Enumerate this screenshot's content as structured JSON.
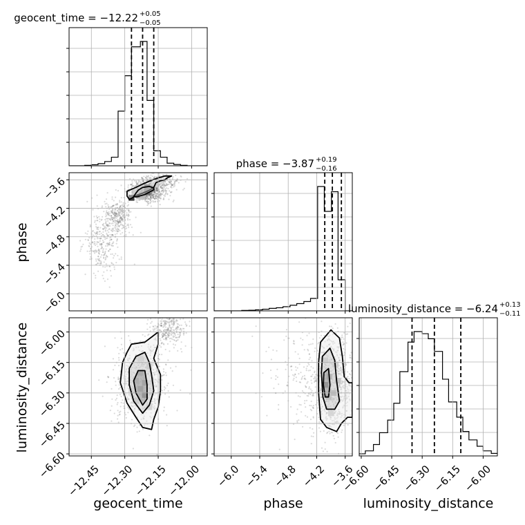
{
  "chart_data": {
    "type": "corner",
    "parameters": [
      {
        "name": "geocent_time",
        "range": [
          -12.55,
          -11.93
        ],
        "ticks": [
          -12.45,
          -12.3,
          -12.15,
          -12.0
        ],
        "tick_labels": [
          "−12.45",
          "−12.30",
          "−12.15",
          "−12.00"
        ],
        "median": -12.22,
        "plus": 0.05,
        "minus": 0.05,
        "title_main": "geocent_time = −12.22",
        "title_plus": "+0.05",
        "title_minus": "−0.05"
      },
      {
        "name": "phase",
        "range": [
          -6.36,
          -3.45
        ],
        "ticks": [
          -6.0,
          -5.4,
          -4.8,
          -4.2,
          -3.6
        ],
        "tick_labels": [
          "−6.0",
          "−5.4",
          "−4.8",
          "−4.2",
          "−3.6"
        ],
        "median": -3.87,
        "plus": 0.19,
        "minus": 0.16,
        "title_main": "phase = −3.87",
        "title_plus": "+0.19",
        "title_minus": "−0.16"
      },
      {
        "name": "luminosity_distance",
        "range": [
          -6.61,
          -5.93
        ],
        "ticks": [
          -6.6,
          -6.45,
          -6.3,
          -6.15,
          -6.0
        ],
        "tick_labels": [
          "−6.60",
          "−6.45",
          "−6.30",
          "−6.15",
          "−6.00"
        ],
        "median": -6.24,
        "plus": 0.13,
        "minus": 0.11,
        "title_main": "luminosity_distance = −6.24",
        "title_plus": "+0.13",
        "title_minus": "−0.11"
      }
    ],
    "histograms": [
      {
        "parameter": "geocent_time",
        "bin_edges": [
          -12.55,
          -12.52,
          -12.48,
          -12.45,
          -12.42,
          -12.39,
          -12.36,
          -12.33,
          -12.3,
          -12.27,
          -12.23,
          -12.2,
          -12.17,
          -12.14,
          -12.11,
          -12.08,
          -12.05,
          -12.02,
          -11.99,
          -11.96,
          -11.93
        ],
        "counts": [
          0,
          0,
          2,
          5,
          10,
          20,
          40,
          255,
          420,
          555,
          580,
          305,
          70,
          40,
          12,
          6,
          2,
          0,
          0,
          0
        ],
        "quantile_lines": [
          -12.27,
          -12.22,
          -12.17
        ]
      },
      {
        "parameter": "phase",
        "bin_edges": [
          -6.36,
          -6.21,
          -6.07,
          -5.92,
          -5.78,
          -5.63,
          -5.49,
          -5.34,
          -5.2,
          -5.05,
          -4.91,
          -4.76,
          -4.62,
          -4.47,
          -4.33,
          -4.18,
          -4.04,
          -3.89,
          -3.75,
          -3.6,
          -3.45
        ],
        "counts": [
          0,
          0,
          0,
          0,
          2,
          3,
          5,
          8,
          12,
          15,
          20,
          27,
          35,
          45,
          60,
          600,
          480,
          575,
          150,
          0
        ],
        "quantile_lines": [
          -4.03,
          -3.87,
          -3.68
        ]
      },
      {
        "parameter": "luminosity_distance",
        "bin_edges": [
          -6.61,
          -6.58,
          -6.54,
          -6.51,
          -6.47,
          -6.44,
          -6.41,
          -6.37,
          -6.34,
          -6.3,
          -6.27,
          -6.24,
          -6.2,
          -6.17,
          -6.13,
          -6.1,
          -6.07,
          -6.03,
          -6.0,
          -5.96,
          -5.93
        ],
        "counts": [
          5,
          12,
          27,
          55,
          85,
          125,
          200,
          270,
          295,
          290,
          278,
          248,
          182,
          128,
          92,
          58,
          38,
          23,
          12,
          6
        ],
        "quantile_lines": [
          -6.35,
          -6.24,
          -6.11
        ]
      }
    ],
    "scatter_panels": [
      {
        "x": "geocent_time",
        "y": "phase",
        "point_centers": [
          [
            -12.2,
            -3.85
          ],
          [
            -12.33,
            -4.4
          ],
          [
            -12.4,
            -4.9
          ],
          [
            -12.15,
            -3.65
          ]
        ],
        "point_spreads": [
          [
            0.04,
            0.1
          ],
          [
            0.03,
            0.18
          ],
          [
            0.04,
            0.35
          ],
          [
            0.05,
            0.08
          ]
        ],
        "contours": [
          [
            [
              -12.27,
              -3.99
            ],
            [
              -12.25,
              -3.93
            ],
            [
              -12.22,
              -3.88
            ],
            [
              -12.19,
              -3.82
            ],
            [
              -12.17,
              -3.76
            ],
            [
              -12.16,
              -3.66
            ],
            [
              -12.14,
              -3.62
            ],
            [
              -12.12,
              -3.6
            ],
            [
              -12.11,
              -3.56
            ],
            [
              -12.09,
              -3.52
            ],
            [
              -12.12,
              -3.52
            ],
            [
              -12.15,
              -3.56
            ],
            [
              -12.18,
              -3.61
            ],
            [
              -12.22,
              -3.69
            ],
            [
              -12.25,
              -3.76
            ],
            [
              -12.27,
              -3.8
            ],
            [
              -12.29,
              -3.84
            ],
            [
              -12.29,
              -3.94
            ],
            [
              -12.28,
              -4.01
            ]
          ],
          [
            [
              -12.25,
              -3.96
            ],
            [
              -12.21,
              -3.91
            ],
            [
              -12.19,
              -3.86
            ],
            [
              -12.17,
              -3.81
            ],
            [
              -12.17,
              -3.77
            ],
            [
              -12.19,
              -3.74
            ],
            [
              -12.22,
              -3.76
            ],
            [
              -12.24,
              -3.82
            ],
            [
              -12.25,
              -3.88
            ],
            [
              -12.26,
              -3.95
            ]
          ]
        ],
        "density_cells": [
          {
            "x": -12.27,
            "y": -3.98,
            "level": 0.85
          },
          {
            "x": -12.23,
            "y": -3.92,
            "level": 0.5
          },
          {
            "x": -12.2,
            "y": -3.86,
            "level": 0.6
          },
          {
            "x": -12.18,
            "y": -3.8,
            "level": 0.45
          },
          {
            "x": -12.2,
            "y": -3.76,
            "level": 0.7
          },
          {
            "x": -12.25,
            "y": -3.86,
            "level": 0.3
          },
          {
            "x": -12.16,
            "y": -3.7,
            "level": 0.2
          },
          {
            "x": -12.14,
            "y": -3.64,
            "level": 0.15
          },
          {
            "x": -12.22,
            "y": -3.96,
            "level": 0.25
          }
        ]
      },
      {
        "x": "geocent_time",
        "y": "luminosity_distance",
        "point_centers": [
          [
            -12.23,
            -6.25
          ],
          [
            -12.1,
            -5.98
          ]
        ],
        "point_spreads": [
          [
            0.06,
            0.1
          ],
          [
            0.04,
            0.04
          ]
        ],
        "contours": [
          [
            [
              -12.27,
              -6.06
            ],
            [
              -12.21,
              -6.05
            ],
            [
              -12.15,
              -6.0
            ],
            [
              -12.15,
              -6.06
            ],
            [
              -12.17,
              -6.13
            ],
            [
              -12.14,
              -6.21
            ],
            [
              -12.14,
              -6.29
            ],
            [
              -12.15,
              -6.37
            ],
            [
              -12.17,
              -6.43
            ],
            [
              -12.18,
              -6.48
            ],
            [
              -12.22,
              -6.47
            ],
            [
              -12.25,
              -6.42
            ],
            [
              -12.29,
              -6.35
            ],
            [
              -12.32,
              -6.25
            ],
            [
              -12.31,
              -6.15
            ],
            [
              -12.29,
              -6.1
            ]
          ],
          [
            [
              -12.25,
              -6.12
            ],
            [
              -12.21,
              -6.1
            ],
            [
              -12.19,
              -6.15
            ],
            [
              -12.18,
              -6.21
            ],
            [
              -12.17,
              -6.29
            ],
            [
              -12.19,
              -6.36
            ],
            [
              -12.22,
              -6.4
            ],
            [
              -12.26,
              -6.34
            ],
            [
              -12.28,
              -6.26
            ],
            [
              -12.28,
              -6.18
            ]
          ],
          [
            [
              -12.24,
              -6.19
            ],
            [
              -12.21,
              -6.19
            ],
            [
              -12.2,
              -6.26
            ],
            [
              -12.2,
              -6.33
            ],
            [
              -12.22,
              -6.36
            ],
            [
              -12.25,
              -6.3
            ],
            [
              -12.26,
              -6.24
            ]
          ]
        ],
        "density_cells": [
          {
            "x": -12.23,
            "y": -6.2,
            "level": 0.4
          },
          {
            "x": -12.21,
            "y": -6.25,
            "level": 0.55
          },
          {
            "x": -12.23,
            "y": -6.28,
            "level": 0.6
          },
          {
            "x": -12.21,
            "y": -6.31,
            "level": 0.95
          },
          {
            "x": -12.25,
            "y": -6.24,
            "level": 0.35
          },
          {
            "x": -12.19,
            "y": -6.17,
            "level": 0.3
          },
          {
            "x": -12.23,
            "y": -6.13,
            "level": 0.2
          },
          {
            "x": -12.19,
            "y": -6.37,
            "level": 0.25
          },
          {
            "x": -12.25,
            "y": -6.34,
            "level": 0.3
          },
          {
            "x": -12.27,
            "y": -6.29,
            "level": 0.2
          }
        ]
      },
      {
        "x": "phase",
        "y": "luminosity_distance",
        "point_centers": [
          [
            -3.85,
            -6.25
          ],
          [
            -4.3,
            -6.25
          ]
        ],
        "point_spreads": [
          [
            0.2,
            0.12
          ],
          [
            0.45,
            0.13
          ]
        ],
        "contours": [
          [
            [
              -4.12,
              -6.05
            ],
            [
              -3.9,
              -5.99
            ],
            [
              -3.72,
              -6.03
            ],
            [
              -3.66,
              -6.12
            ],
            [
              -3.62,
              -6.22
            ],
            [
              -3.52,
              -6.25
            ],
            [
              -3.45,
              -6.25
            ],
            [
              -3.45,
              -6.42
            ],
            [
              -3.55,
              -6.42
            ],
            [
              -3.68,
              -6.45
            ],
            [
              -3.78,
              -6.49
            ],
            [
              -3.99,
              -6.47
            ],
            [
              -4.12,
              -6.43
            ],
            [
              -4.16,
              -6.3
            ],
            [
              -4.16,
              -6.15
            ]
          ],
          [
            [
              -4.08,
              -6.12
            ],
            [
              -3.92,
              -6.08
            ],
            [
              -3.82,
              -6.14
            ],
            [
              -3.78,
              -6.24
            ],
            [
              -3.72,
              -6.34
            ],
            [
              -3.82,
              -6.38
            ],
            [
              -3.99,
              -6.38
            ],
            [
              -4.07,
              -6.32
            ],
            [
              -4.1,
              -6.2
            ]
          ],
          [
            [
              -4.05,
              -6.2
            ],
            [
              -3.95,
              -6.18
            ],
            [
              -3.92,
              -6.26
            ],
            [
              -3.95,
              -6.32
            ],
            [
              -4.02,
              -6.32
            ],
            [
              -4.06,
              -6.26
            ]
          ]
        ],
        "density_cells": [
          {
            "x": -4.02,
            "y": -6.26,
            "level": 0.95
          },
          {
            "x": -3.93,
            "y": -6.22,
            "level": 0.55
          },
          {
            "x": -3.85,
            "y": -6.3,
            "level": 0.5
          },
          {
            "x": -3.95,
            "y": -6.32,
            "level": 0.45
          },
          {
            "x": -3.8,
            "y": -6.16,
            "level": 0.3
          },
          {
            "x": -4.02,
            "y": -6.14,
            "level": 0.25
          },
          {
            "x": -3.9,
            "y": -6.4,
            "level": 0.25
          },
          {
            "x": -3.75,
            "y": -6.24,
            "level": 0.35
          }
        ]
      }
    ],
    "grid": true
  }
}
